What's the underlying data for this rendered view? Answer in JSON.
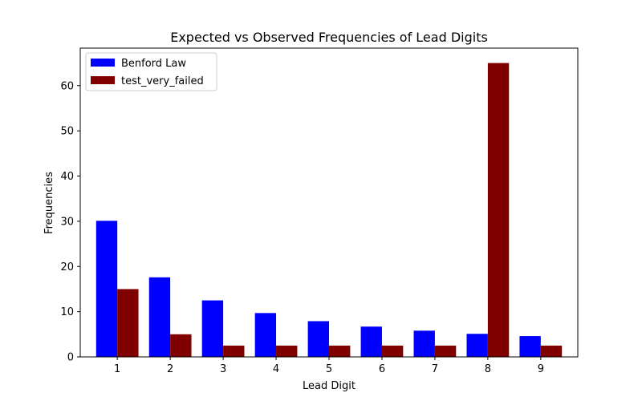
{
  "chart_data": {
    "type": "bar",
    "title": "Expected vs Observed Frequencies of Lead Digits",
    "xlabel": "Lead Digit",
    "ylabel": "Frequencies",
    "categories": [
      "1",
      "2",
      "3",
      "4",
      "5",
      "6",
      "7",
      "8",
      "9"
    ],
    "ylim": [
      0,
      68.3
    ],
    "yticks": [
      0,
      10,
      20,
      30,
      40,
      50,
      60
    ],
    "grid": false,
    "legend_position": "top-left",
    "series": [
      {
        "name": "Benford Law",
        "color": "#0000ff",
        "values": [
          30.1,
          17.6,
          12.5,
          9.7,
          7.9,
          6.7,
          5.8,
          5.1,
          4.6
        ]
      },
      {
        "name": "test_very_failed",
        "color": "#800000",
        "values": [
          15,
          5,
          2.5,
          2.5,
          2.5,
          2.5,
          2.5,
          65,
          2.5
        ]
      }
    ]
  }
}
